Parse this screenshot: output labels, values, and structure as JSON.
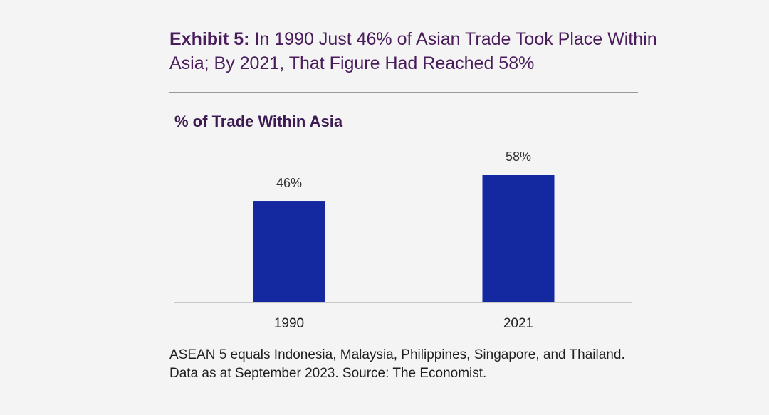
{
  "header": {
    "title_lead": "Exhibit 5:",
    "title_rest": "In 1990 Just 46% of Asian Trade Took Place Within Asia; By 2021, That Figure Had Reached 58%"
  },
  "footnote": "ASEAN 5 equals Indonesia, Malaysia, Philippines, Singapore, and Thailand. Data as at September 2023. Source: The Economist.",
  "colors": {
    "bar": "#1428a0",
    "title": "#4a1c5c",
    "axis": "#c8c8c8"
  },
  "chart_data": {
    "type": "bar",
    "title": "% of Trade Within Asia",
    "categories": [
      "1990",
      "2021"
    ],
    "values": [
      46,
      58
    ],
    "value_labels": [
      "46%",
      "58%"
    ],
    "unit": "%",
    "xlabel": "",
    "ylabel": "",
    "ylim": [
      0,
      100
    ],
    "grid": false,
    "legend": "none"
  }
}
